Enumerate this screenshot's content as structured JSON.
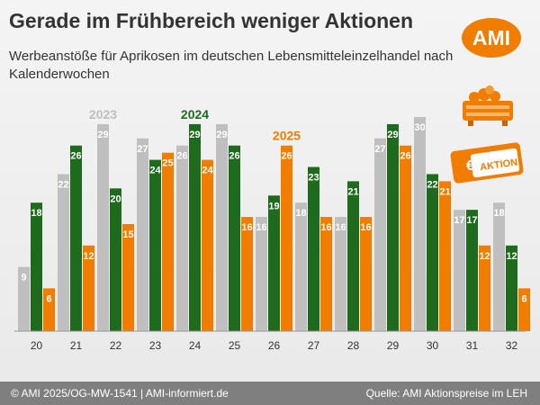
{
  "header": {
    "title": "Gerade im Frühbereich weniger Aktionen",
    "subtitle": "Werbeanstöße für Aprikosen im deutschen Lebensmitteleinzelhandel nach Kalenderwochen",
    "logo_text": "AMI"
  },
  "badges": {
    "coupon_euro": "€",
    "coupon_text": "AKTION"
  },
  "footer": {
    "left": "© AMI 2025/OG-MW-1541 | AMI-informiert.de",
    "right": "Quelle: AMI Aktionspreise im LEH"
  },
  "colors": {
    "2023": "#bfbfbf",
    "2024": "#1e6b1e",
    "2025": "#f07d00",
    "accent": "#f07d00"
  },
  "chart_data": {
    "type": "bar",
    "categories": [
      "20",
      "21",
      "22",
      "23",
      "24",
      "25",
      "26",
      "27",
      "28",
      "29",
      "30",
      "31",
      "32"
    ],
    "series": [
      {
        "name": "2023",
        "values": [
          9,
          22,
          29,
          27,
          26,
          29,
          16,
          18,
          16,
          27,
          30,
          17,
          18
        ]
      },
      {
        "name": "2024",
        "values": [
          18,
          26,
          20,
          24,
          29,
          26,
          19,
          23,
          21,
          29,
          22,
          17,
          12
        ]
      },
      {
        "name": "2025",
        "values": [
          6,
          12,
          15,
          25,
          24,
          16,
          26,
          16,
          16,
          26,
          21,
          12,
          6
        ]
      }
    ],
    "ylim": [
      0,
      30
    ],
    "grid": false,
    "legend": "inline labels above bars"
  }
}
